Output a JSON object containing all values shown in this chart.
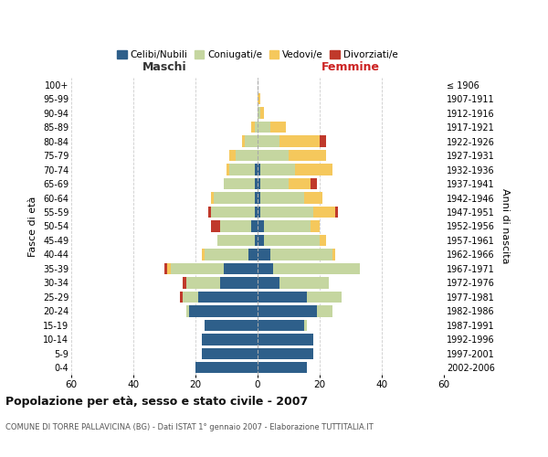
{
  "age_groups": [
    "100+",
    "95-99",
    "90-94",
    "85-89",
    "80-84",
    "75-79",
    "70-74",
    "65-69",
    "60-64",
    "55-59",
    "50-54",
    "45-49",
    "40-44",
    "35-39",
    "30-34",
    "25-29",
    "20-24",
    "15-19",
    "10-14",
    "5-9",
    "0-4"
  ],
  "birth_years": [
    "≤ 1906",
    "1907-1911",
    "1912-1916",
    "1917-1921",
    "1922-1926",
    "1927-1931",
    "1932-1936",
    "1937-1941",
    "1942-1946",
    "1947-1951",
    "1952-1956",
    "1957-1961",
    "1962-1966",
    "1967-1971",
    "1972-1976",
    "1977-1981",
    "1982-1986",
    "1987-1991",
    "1992-1996",
    "1997-2001",
    "2002-2006"
  ],
  "maschi": {
    "celibi": [
      0,
      0,
      0,
      0,
      0,
      0,
      1,
      1,
      1,
      1,
      2,
      1,
      3,
      11,
      12,
      19,
      22,
      17,
      18,
      18,
      20
    ],
    "coniugati": [
      0,
      0,
      0,
      1,
      4,
      7,
      8,
      10,
      13,
      14,
      10,
      12,
      14,
      17,
      11,
      5,
      1,
      0,
      0,
      0,
      0
    ],
    "vedovi": [
      0,
      0,
      0,
      1,
      1,
      2,
      1,
      0,
      1,
      0,
      0,
      0,
      1,
      1,
      0,
      0,
      0,
      0,
      0,
      0,
      0
    ],
    "divorziati": [
      0,
      0,
      0,
      0,
      0,
      0,
      0,
      0,
      0,
      1,
      3,
      0,
      0,
      1,
      1,
      1,
      0,
      0,
      0,
      0,
      0
    ]
  },
  "femmine": {
    "nubili": [
      0,
      0,
      0,
      0,
      0,
      0,
      1,
      1,
      1,
      1,
      2,
      2,
      4,
      5,
      7,
      16,
      19,
      15,
      18,
      18,
      16
    ],
    "coniugate": [
      0,
      0,
      1,
      4,
      7,
      10,
      11,
      9,
      14,
      17,
      15,
      18,
      20,
      28,
      16,
      11,
      5,
      1,
      0,
      0,
      0
    ],
    "vedove": [
      0,
      1,
      1,
      5,
      13,
      12,
      12,
      7,
      6,
      7,
      3,
      2,
      1,
      0,
      0,
      0,
      0,
      0,
      0,
      0,
      0
    ],
    "divorziate": [
      0,
      0,
      0,
      0,
      2,
      0,
      0,
      2,
      0,
      1,
      0,
      0,
      0,
      0,
      0,
      0,
      0,
      0,
      0,
      0,
      0
    ]
  },
  "colors": {
    "celibi_nubili": "#2E5F8A",
    "coniugati": "#C5D6A0",
    "vedovi": "#F5C85C",
    "divorziati": "#C0392B"
  },
  "title": "Popolazione per età, sesso e stato civile - 2007",
  "subtitle": "COMUNE DI TORRE PALLAVICINA (BG) - Dati ISTAT 1° gennaio 2007 - Elaborazione TUTTITALIA.IT",
  "xlabel_left": "Maschi",
  "xlabel_right": "Femmine",
  "ylabel_left": "Fasce di età",
  "ylabel_right": "Anni di nascita",
  "xlim": 60,
  "background_color": "#ffffff",
  "grid_color": "#cccccc"
}
